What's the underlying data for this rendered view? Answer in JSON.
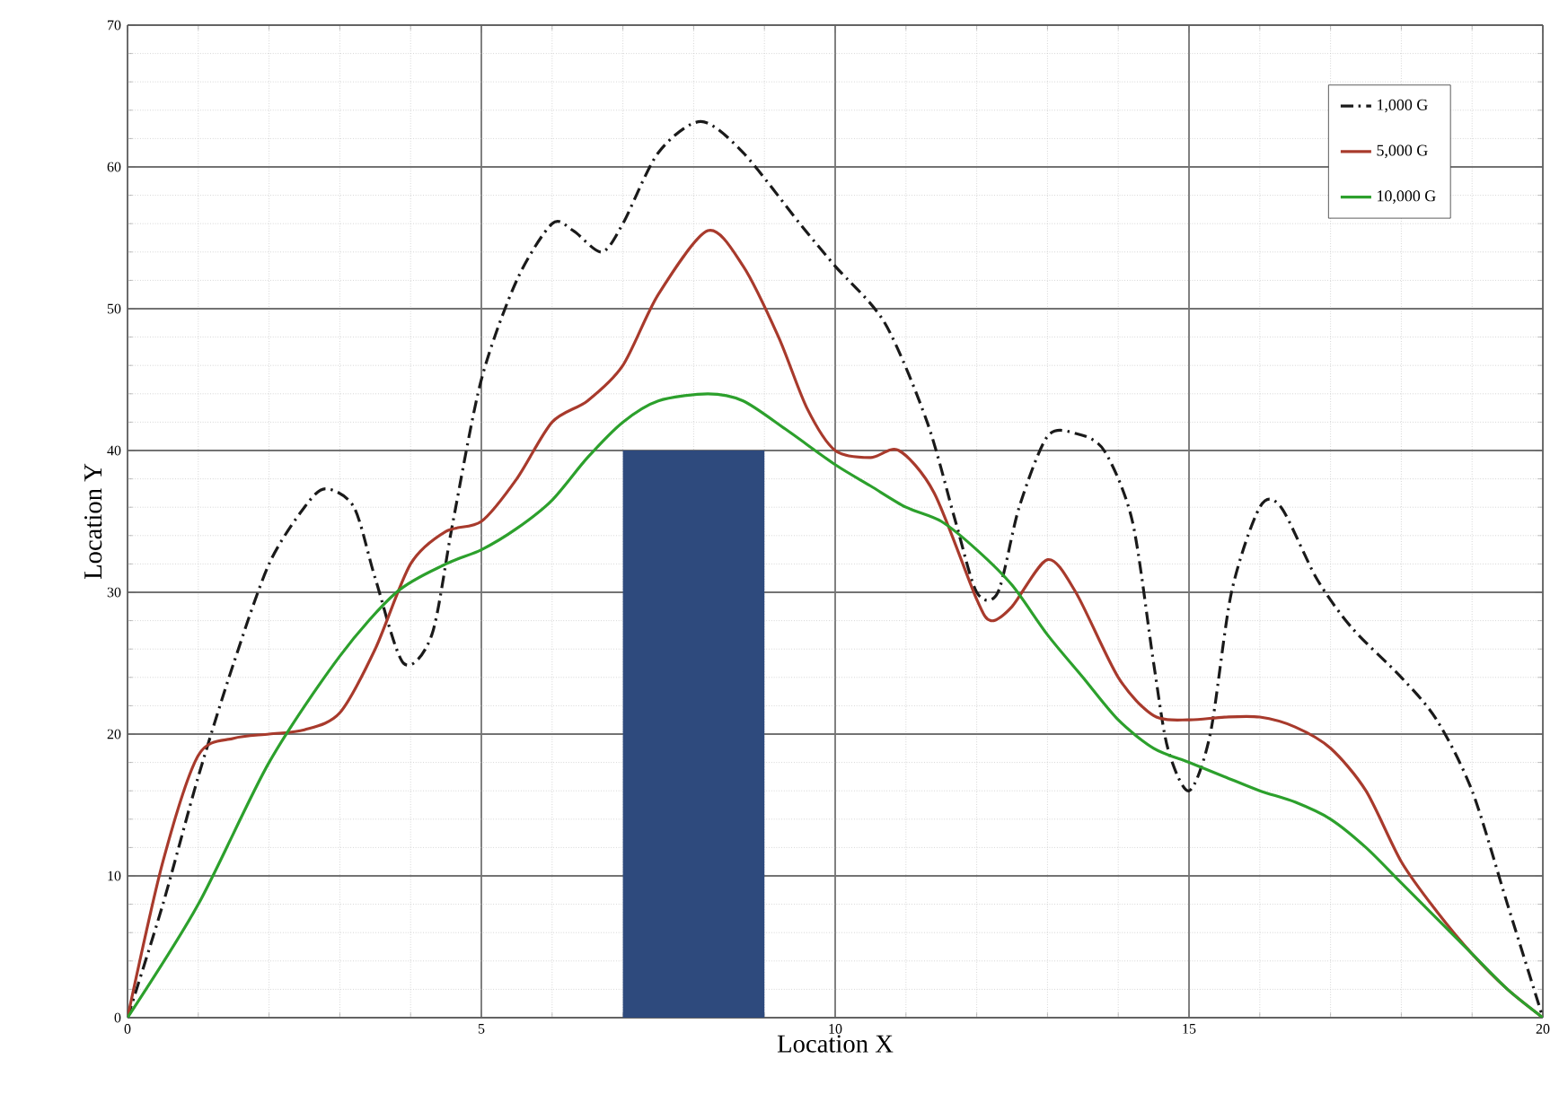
{
  "chart_data": {
    "type": "line",
    "xlabel": "Location X",
    "ylabel": "Location Y",
    "xlim": [
      0,
      20
    ],
    "ylim": [
      0,
      70
    ],
    "xticks": [
      0,
      5,
      10,
      15,
      20
    ],
    "yticks": [
      0,
      10,
      20,
      30,
      40,
      50,
      60,
      70
    ],
    "grid": true,
    "legend": "top right",
    "marker": "none",
    "series": [
      {
        "name": "1,000 G",
        "color": "#1a1a1a",
        "line_style": "dashdot",
        "x": [
          0,
          0.5,
          1,
          1.5,
          2,
          2.5,
          2.8,
          3.2,
          3.5,
          3.9,
          4.3,
          4.6,
          5,
          5.5,
          6,
          6.3,
          6.7,
          7,
          7.5,
          8.1,
          8.7,
          9.5,
          10,
          10.7,
          11.3,
          11.7,
          12,
          12.3,
          12.6,
          13,
          13.4,
          13.8,
          14.2,
          14.5,
          14.7,
          15,
          15.3,
          15.6,
          16,
          16.3,
          16.8,
          17.3,
          18,
          18.5,
          19,
          19.5,
          20
        ],
        "values": [
          0,
          8,
          17,
          25,
          32,
          36,
          37.3,
          36,
          31,
          25,
          27,
          35,
          45,
          52,
          56,
          55.5,
          54,
          56,
          61,
          63.2,
          61,
          56,
          53,
          49,
          42,
          35,
          30,
          30,
          36,
          41,
          41.2,
          40,
          35,
          25,
          19,
          16,
          20,
          30,
          36,
          36,
          31,
          27.5,
          24,
          21,
          16,
          8,
          0
        ]
      },
      {
        "name": "5,000 G",
        "color": "#a83a2c",
        "line_style": "solid",
        "x": [
          0,
          0.5,
          1,
          1.5,
          2,
          2.5,
          3,
          3.5,
          4,
          4.5,
          5,
          5.5,
          6,
          6.5,
          7,
          7.5,
          8.2,
          8.7,
          9.2,
          9.6,
          10,
          10.5,
          10.9,
          11.4,
          12,
          12.2,
          12.5,
          13,
          13.4,
          14,
          14.5,
          15,
          15.5,
          16,
          16.5,
          17,
          17.5,
          18,
          18.5,
          19,
          19.5,
          20
        ],
        "values": [
          0,
          11,
          18.5,
          19.7,
          20,
          20.3,
          21.5,
          26,
          32,
          34.3,
          35,
          38,
          42,
          43.5,
          46,
          51,
          55.5,
          53,
          48,
          43,
          40,
          39.5,
          40,
          37,
          29.5,
          28,
          29,
          32.3,
          30,
          24,
          21.3,
          21,
          21.2,
          21.2,
          20.5,
          19,
          16,
          11,
          7.5,
          4.5,
          2,
          0
        ]
      },
      {
        "name": "10,000 G",
        "color": "#2ca02c",
        "line_style": "solid",
        "x": [
          0,
          1,
          2,
          3,
          3.8,
          4.5,
          5,
          5.5,
          6,
          6.5,
          7,
          7.5,
          8.2,
          8.7,
          9.3,
          10,
          10.5,
          11,
          11.5,
          12,
          12.5,
          13,
          13.5,
          14,
          14.5,
          15,
          15.5,
          16,
          16.5,
          17,
          17.5,
          18,
          18.5,
          19,
          19.5,
          20
        ],
        "values": [
          0,
          8,
          18,
          25.5,
          30,
          32,
          33,
          34.5,
          36.5,
          39.5,
          42,
          43.5,
          44,
          43.5,
          41.5,
          39,
          37.5,
          36,
          35,
          33,
          30.5,
          27,
          24,
          21,
          19,
          18,
          17,
          16,
          15.2,
          14,
          12,
          9.5,
          7,
          4.5,
          2,
          0
        ]
      },
      {
        "type": "bar",
        "color": "#2e4a7d",
        "x": [
          8
        ],
        "values": [
          40
        ]
      }
    ]
  }
}
